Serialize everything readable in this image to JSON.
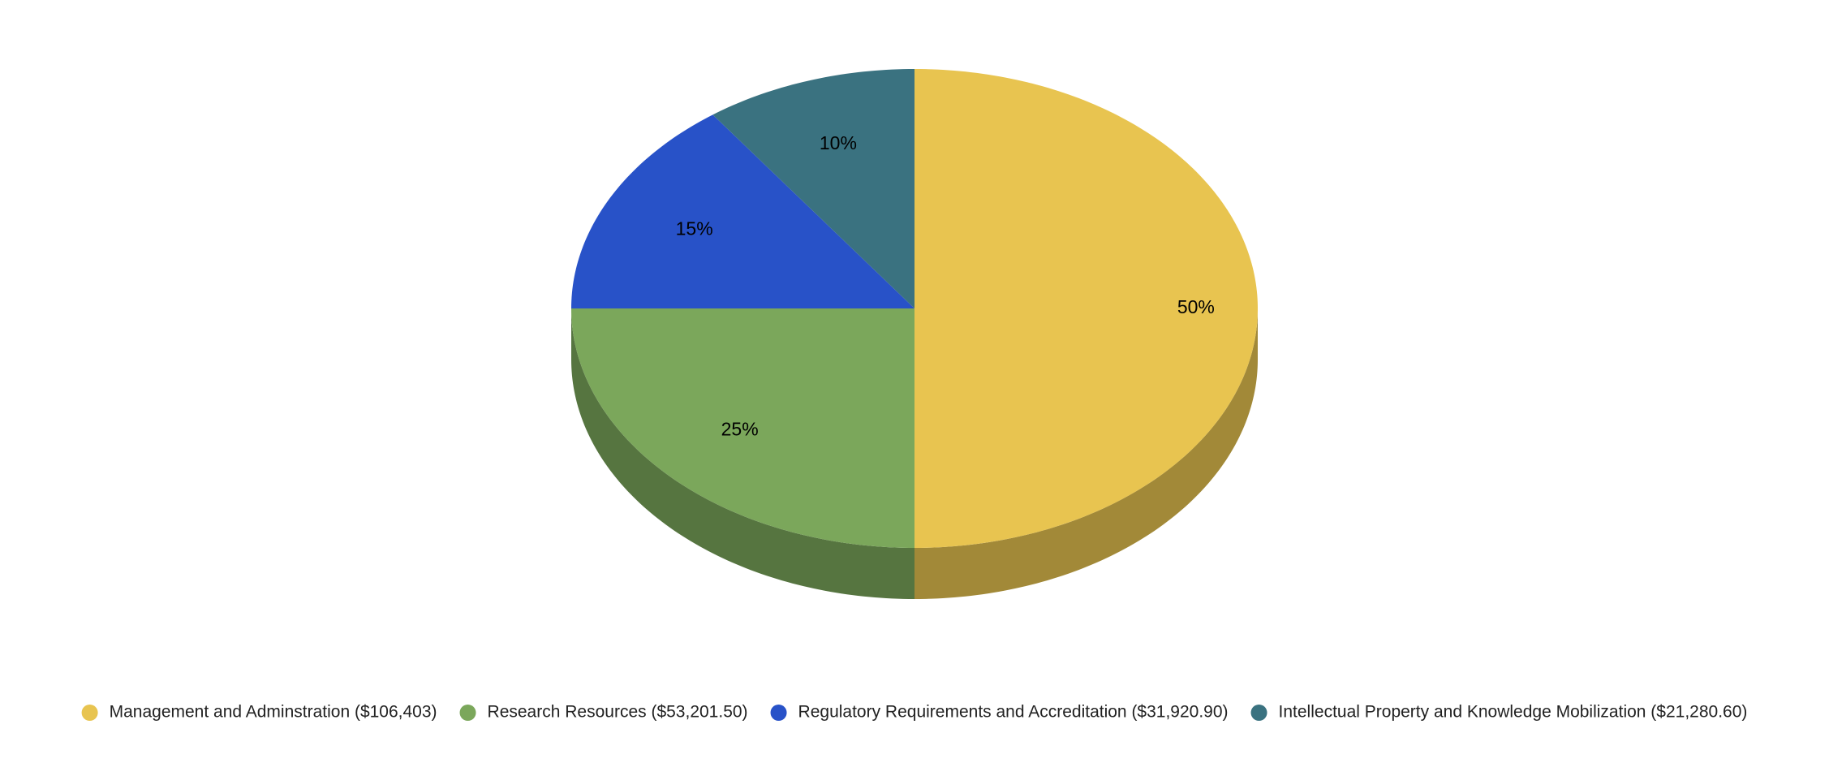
{
  "chart_data": {
    "type": "pie",
    "three_d": true,
    "categories": [
      "Management and Adminstration ($106,403)",
      "Research Resources ($53,201.50)",
      "Regulatory Requirements and Accreditation ($31,920.90)",
      "Intellectual Property and Knowledge Mobilization ($21,280.60)"
    ],
    "values": [
      50,
      25,
      15,
      10
    ],
    "value_labels": [
      "50%",
      "25%",
      "15%",
      "10%"
    ],
    "colors": [
      "#e8c450",
      "#7ba75b",
      "#2852c8",
      "#3a7280"
    ],
    "legend": "bottom"
  }
}
